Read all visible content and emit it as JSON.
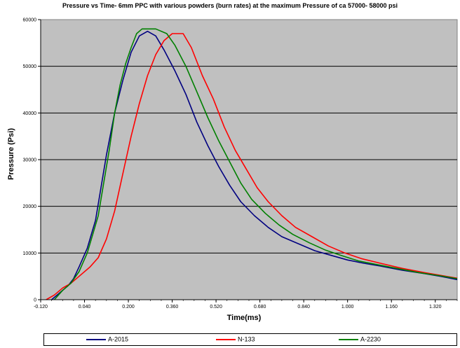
{
  "chart_data": {
    "type": "line",
    "title": "Pressure vs Time- 6mm PPC with various powders (burn rates) at the maximum Pressure of ca 57000- 58000 psi",
    "xlabel": "Time(ms)",
    "ylabel": "Pressure (Psi)",
    "xlim": [
      -0.12,
      1.4
    ],
    "ylim": [
      0,
      60000
    ],
    "x_ticks": [
      "-0.120",
      "0.040",
      "0.200",
      "0.360",
      "0.520",
      "0.680",
      "0.840",
      "1.000",
      "1.160",
      "1.320"
    ],
    "y_ticks": [
      "0",
      "10000",
      "20000",
      "30000",
      "40000",
      "50000",
      "60000"
    ],
    "grid": "horizontal",
    "legend_position": "bottom",
    "plot_background": "#c0c0c0",
    "series": [
      {
        "name": "A-2015",
        "color": "#000080",
        "points": [
          [
            -0.08,
            0
          ],
          [
            -0.05,
            1500
          ],
          [
            -0.02,
            3000
          ],
          [
            0.0,
            4500
          ],
          [
            0.02,
            7000
          ],
          [
            0.05,
            11000
          ],
          [
            0.08,
            17000
          ],
          [
            0.1,
            24000
          ],
          [
            0.12,
            31000
          ],
          [
            0.15,
            40000
          ],
          [
            0.18,
            47000
          ],
          [
            0.21,
            53000
          ],
          [
            0.24,
            56500
          ],
          [
            0.27,
            57500
          ],
          [
            0.3,
            56500
          ],
          [
            0.33,
            53500
          ],
          [
            0.37,
            49000
          ],
          [
            0.41,
            44000
          ],
          [
            0.45,
            38000
          ],
          [
            0.49,
            33000
          ],
          [
            0.53,
            28500
          ],
          [
            0.57,
            24500
          ],
          [
            0.61,
            21000
          ],
          [
            0.66,
            18000
          ],
          [
            0.71,
            15500
          ],
          [
            0.76,
            13500
          ],
          [
            0.82,
            12000
          ],
          [
            0.88,
            10500
          ],
          [
            0.94,
            9500
          ],
          [
            1.0,
            8500
          ],
          [
            1.06,
            7800
          ],
          [
            1.12,
            7200
          ],
          [
            1.2,
            6300
          ],
          [
            1.28,
            5600
          ],
          [
            1.34,
            5000
          ],
          [
            1.4,
            4300
          ]
        ]
      },
      {
        "name": "N-133",
        "color": "#ff0000",
        "points": [
          [
            -0.1,
            0
          ],
          [
            -0.07,
            1000
          ],
          [
            -0.04,
            2500
          ],
          [
            -0.01,
            3500
          ],
          [
            0.02,
            5000
          ],
          [
            0.06,
            7000
          ],
          [
            0.09,
            9000
          ],
          [
            0.12,
            13000
          ],
          [
            0.15,
            19000
          ],
          [
            0.18,
            27000
          ],
          [
            0.21,
            35000
          ],
          [
            0.24,
            42000
          ],
          [
            0.27,
            48000
          ],
          [
            0.3,
            52500
          ],
          [
            0.33,
            55500
          ],
          [
            0.36,
            57000
          ],
          [
            0.4,
            57000
          ],
          [
            0.43,
            54000
          ],
          [
            0.47,
            48000
          ],
          [
            0.51,
            43000
          ],
          [
            0.55,
            37000
          ],
          [
            0.59,
            32000
          ],
          [
            0.63,
            28000
          ],
          [
            0.67,
            24000
          ],
          [
            0.71,
            21000
          ],
          [
            0.76,
            18000
          ],
          [
            0.81,
            15500
          ],
          [
            0.87,
            13500
          ],
          [
            0.93,
            11500
          ],
          [
            0.99,
            10000
          ],
          [
            1.05,
            8800
          ],
          [
            1.12,
            7800
          ],
          [
            1.2,
            6700
          ],
          [
            1.28,
            5800
          ],
          [
            1.34,
            5200
          ],
          [
            1.4,
            4600
          ]
        ]
      },
      {
        "name": "A-2230",
        "color": "#008000",
        "points": [
          [
            -0.07,
            0
          ],
          [
            -0.04,
            2000
          ],
          [
            -0.01,
            3500
          ],
          [
            0.02,
            6000
          ],
          [
            0.05,
            10000
          ],
          [
            0.07,
            14000
          ],
          [
            0.09,
            18000
          ],
          [
            0.11,
            25000
          ],
          [
            0.13,
            32000
          ],
          [
            0.15,
            40000
          ],
          [
            0.17,
            46000
          ],
          [
            0.19,
            50500
          ],
          [
            0.21,
            54000
          ],
          [
            0.23,
            57000
          ],
          [
            0.25,
            58000
          ],
          [
            0.3,
            58000
          ],
          [
            0.34,
            57000
          ],
          [
            0.37,
            54500
          ],
          [
            0.41,
            50000
          ],
          [
            0.45,
            44500
          ],
          [
            0.49,
            39000
          ],
          [
            0.53,
            34000
          ],
          [
            0.57,
            29500
          ],
          [
            0.61,
            25000
          ],
          [
            0.65,
            21500
          ],
          [
            0.7,
            18500
          ],
          [
            0.75,
            16000
          ],
          [
            0.8,
            14000
          ],
          [
            0.86,
            12200
          ],
          [
            0.92,
            10600
          ],
          [
            0.98,
            9400
          ],
          [
            1.04,
            8300
          ],
          [
            1.1,
            7600
          ],
          [
            1.18,
            6700
          ],
          [
            1.26,
            5800
          ],
          [
            1.34,
            5100
          ],
          [
            1.4,
            4500
          ]
        ]
      }
    ]
  }
}
